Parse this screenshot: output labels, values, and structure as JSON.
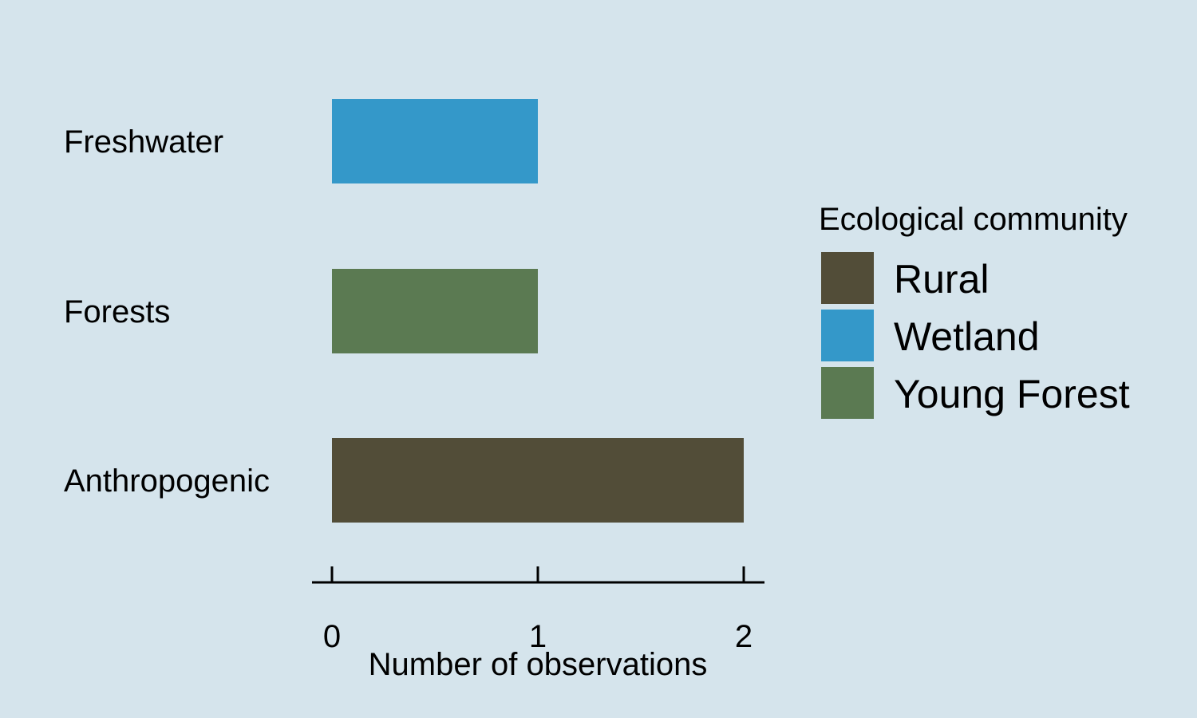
{
  "chart_data": {
    "type": "bar",
    "orientation": "horizontal",
    "title": "",
    "xlabel": "Number of observations",
    "ylabel": "",
    "xlim": [
      0,
      2
    ],
    "x_ticks": [
      "0",
      "1",
      "2"
    ],
    "grid": false,
    "legend_position": "right",
    "legend_title": "Ecological community",
    "categories": [
      "Freshwater",
      "Forests",
      "Anthropogenic"
    ],
    "values": [
      1,
      1,
      2
    ],
    "bar_series": [
      "Wetland",
      "Young Forest",
      "Rural"
    ],
    "legend": [
      {
        "label": "Rural",
        "color": "#524d38"
      },
      {
        "label": "Wetland",
        "color": "#3498c9"
      },
      {
        "label": "Young Forest",
        "color": "#5b7a52"
      }
    ]
  },
  "colors": {
    "background": "#d5e4ec",
    "axis": "#000000"
  }
}
